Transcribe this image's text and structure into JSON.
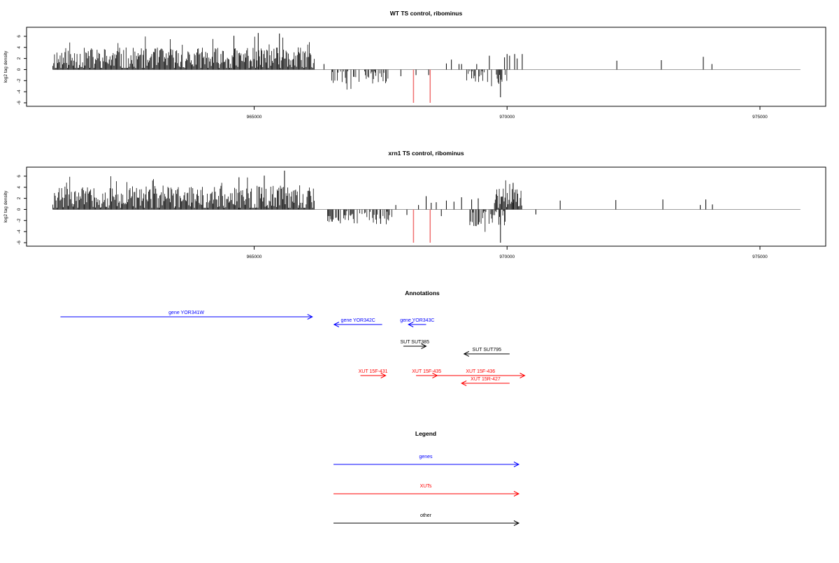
{
  "chart_data": [
    {
      "type": "bar",
      "title": "WT TS control, ribominus",
      "ylabel": "log2 tag density",
      "xlim": [
        960500,
        976300
      ],
      "ylim": [
        -6,
        7
      ],
      "x_ticks": [
        965000,
        970000,
        975000
      ],
      "y_ticks": [
        6,
        4,
        2,
        0,
        -2,
        -4,
        -6
      ],
      "dense_regions": [
        {
          "from": 961020,
          "to": 966200,
          "base": 1.8,
          "amp": 2.2,
          "seed": 11,
          "sign": 1
        },
        {
          "from": 966500,
          "to": 967650,
          "base": -1.4,
          "amp": 1.2,
          "seed": 23,
          "sign": -1
        },
        {
          "from": 969200,
          "to": 970000,
          "base": -1.3,
          "amp": 1.3,
          "seed": 31,
          "sign": -1
        }
      ],
      "peaks": [
        {
          "x": 965080,
          "y": 6.6
        },
        {
          "x": 965500,
          "y": 6.5
        },
        {
          "x": 964600,
          "y": 6.1
        },
        {
          "x": 966380,
          "y": 1.0
        },
        {
          "x": 967900,
          "y": -1.2
        },
        {
          "x": 968200,
          "y": -1.0
        },
        {
          "x": 968450,
          "y": -1.0
        },
        {
          "x": 968800,
          "y": 1.1
        },
        {
          "x": 968900,
          "y": 1.8
        },
        {
          "x": 969050,
          "y": 1.0
        },
        {
          "x": 969100,
          "y": 1.0
        },
        {
          "x": 969300,
          "y": -1.6
        },
        {
          "x": 969400,
          "y": 1.0
        },
        {
          "x": 969650,
          "y": 2.5
        },
        {
          "x": 969870,
          "y": -5.0
        },
        {
          "x": 969950,
          "y": 2.2
        },
        {
          "x": 970000,
          "y": 2.8
        },
        {
          "x": 970050,
          "y": 2.5
        },
        {
          "x": 970150,
          "y": 2.8
        },
        {
          "x": 970200,
          "y": 2.0
        },
        {
          "x": 970300,
          "y": 2.8
        },
        {
          "x": 972170,
          "y": 1.6
        },
        {
          "x": 973050,
          "y": 1.7
        },
        {
          "x": 973880,
          "y": 2.3
        },
        {
          "x": 974050,
          "y": 1.0
        }
      ],
      "highlight_x": [
        968150,
        968480
      ],
      "highlight_y": -6,
      "highlight_color": "#f07070"
    },
    {
      "type": "bar",
      "title": "xrn1 TS control, ribominus",
      "ylabel": "log2 tag density",
      "xlim": [
        960500,
        976300
      ],
      "ylim": [
        -6,
        7
      ],
      "x_ticks": [
        965000,
        970000,
        975000
      ],
      "y_ticks": [
        6,
        4,
        2,
        0,
        -2,
        -4,
        -6
      ],
      "dense_regions": [
        {
          "from": 961020,
          "to": 966200,
          "base": 2.0,
          "amp": 2.3,
          "seed": 47,
          "sign": 1
        },
        {
          "from": 966450,
          "to": 967750,
          "base": -1.5,
          "amp": 1.2,
          "seed": 53,
          "sign": -1
        },
        {
          "from": 969200,
          "to": 970000,
          "base": -1.6,
          "amp": 1.4,
          "seed": 67,
          "sign": -1
        },
        {
          "from": 969750,
          "to": 970300,
          "base": 2.0,
          "amp": 1.8,
          "seed": 71,
          "sign": 1
        }
      ],
      "peaks": [
        {
          "x": 965600,
          "y": 7.0
        },
        {
          "x": 965200,
          "y": 6.1
        },
        {
          "x": 964700,
          "y": 5.8
        },
        {
          "x": 967500,
          "y": -2.6
        },
        {
          "x": 967800,
          "y": 0.8
        },
        {
          "x": 968020,
          "y": -1.0
        },
        {
          "x": 968250,
          "y": 0.8
        },
        {
          "x": 968400,
          "y": 2.4
        },
        {
          "x": 968500,
          "y": 1.2
        },
        {
          "x": 968600,
          "y": 1.3
        },
        {
          "x": 968800,
          "y": 1.6
        },
        {
          "x": 968700,
          "y": -1.2
        },
        {
          "x": 968950,
          "y": 1.4
        },
        {
          "x": 969100,
          "y": 2.2
        },
        {
          "x": 969300,
          "y": 1.8
        },
        {
          "x": 969430,
          "y": 2.0
        },
        {
          "x": 969870,
          "y": -6.0
        },
        {
          "x": 970120,
          "y": 4.8
        },
        {
          "x": 970570,
          "y": -0.9
        },
        {
          "x": 971050,
          "y": 1.6
        },
        {
          "x": 972150,
          "y": 1.7
        },
        {
          "x": 973080,
          "y": 1.8
        },
        {
          "x": 973820,
          "y": 0.8
        },
        {
          "x": 973930,
          "y": 1.8
        },
        {
          "x": 974060,
          "y": 0.9
        }
      ],
      "highlight_x": [
        968150,
        968480
      ],
      "highlight_y": -6,
      "highlight_color": "#f07070"
    }
  ],
  "annotations": {
    "title": "Annotations",
    "features": [
      {
        "label": "gene YOR341W",
        "from": 961170,
        "to": 966150,
        "color": "#0000ff",
        "row": 0
      },
      {
        "label": "gene YOR342C",
        "from": 967530,
        "to": 966580,
        "color": "#0000ff",
        "row": 1
      },
      {
        "label": "gene YOR343C",
        "from": 968400,
        "to": 968050,
        "color": "#0000ff",
        "row": 1
      },
      {
        "label": "SUT SUT385",
        "from": 967950,
        "to": 968400,
        "color": "#000000",
        "row": 2
      },
      {
        "label": "SUT SUT795",
        "from": 970050,
        "to": 969150,
        "color": "#000000",
        "row": 3
      },
      {
        "label": "XUT 15F-431",
        "from": 967100,
        "to": 967600,
        "color": "#ff0000",
        "row": 4
      },
      {
        "label": "XUT 15F-435",
        "from": 968200,
        "to": 968620,
        "color": "#ff0000",
        "row": 4
      },
      {
        "label": "XUT 15F-436",
        "from": 968600,
        "to": 970350,
        "color": "#ff0000",
        "row": 4
      },
      {
        "label": "XUT 15R-427",
        "from": 970050,
        "to": 969100,
        "color": "#ff0000",
        "row": 5
      }
    ]
  },
  "legend": {
    "title": "Legend",
    "items": [
      {
        "label": "genes",
        "color": "#0000ff"
      },
      {
        "label": "XUTs",
        "color": "#ff0000"
      },
      {
        "label": "other",
        "color": "#000000"
      }
    ]
  },
  "colors": {
    "signal": "#000000",
    "zero_line": "#a0a0a0",
    "frame": "#000000"
  }
}
